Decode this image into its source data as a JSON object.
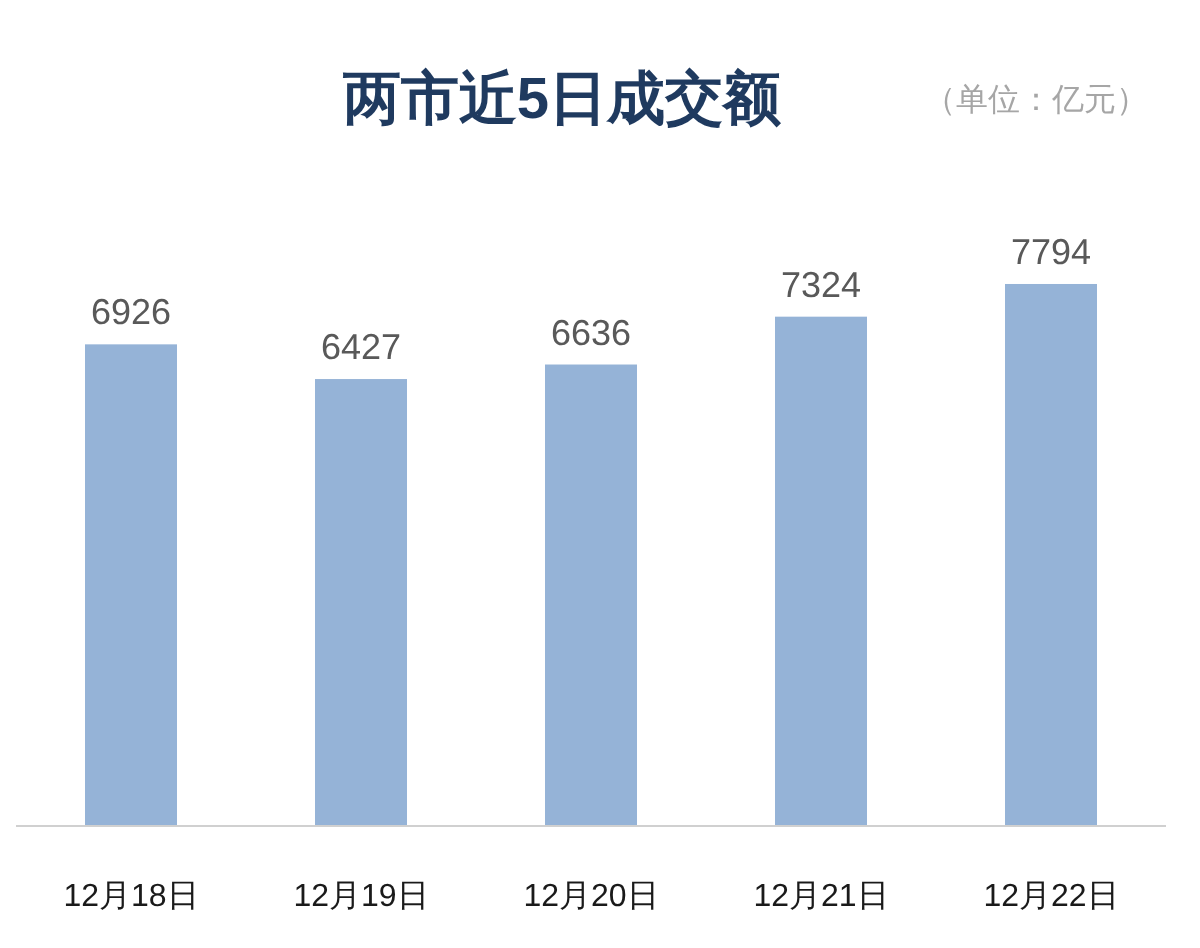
{
  "chart_data": {
    "type": "bar",
    "title": "两市近5日成交额",
    "subtitle": "（单位：亿元）",
    "categories": [
      "12月18日",
      "12月19日",
      "12月20日",
      "12月21日",
      "12月22日"
    ],
    "values": [
      6926,
      6427,
      6636,
      7324,
      7794
    ],
    "color": "#95b3d7",
    "data_labels": true
  }
}
